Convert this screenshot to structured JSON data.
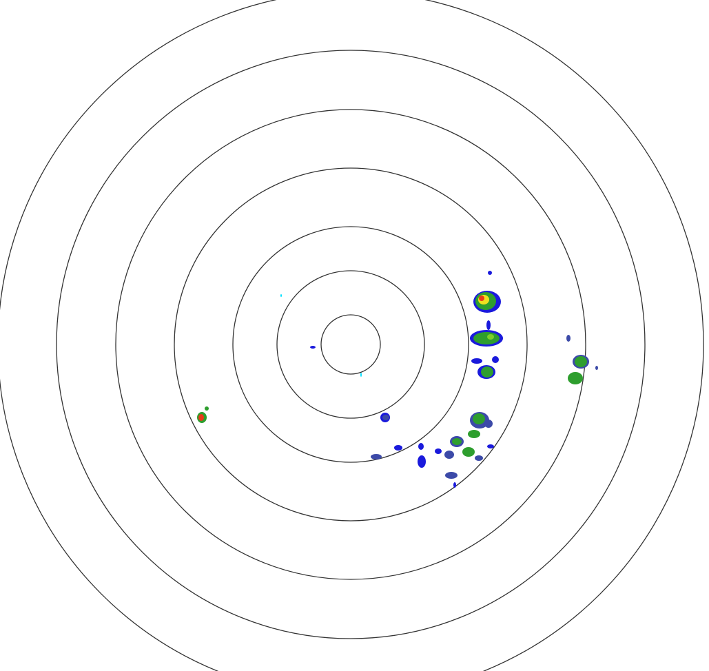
{
  "display": {
    "type": "radar-reflectivity-ppi",
    "range_ring_count": 7,
    "ring_color": "#333333",
    "background": "#ffffff"
  },
  "reflectivity_colors": {
    "light": "#1a1adc",
    "light_moderate": "#3c4aa8",
    "moderate": "#2e9e2e",
    "moderate_high": "#7ccf2a",
    "high": "#f0e020",
    "very_high": "#e83a1a",
    "trace": "#00e0ff"
  }
}
